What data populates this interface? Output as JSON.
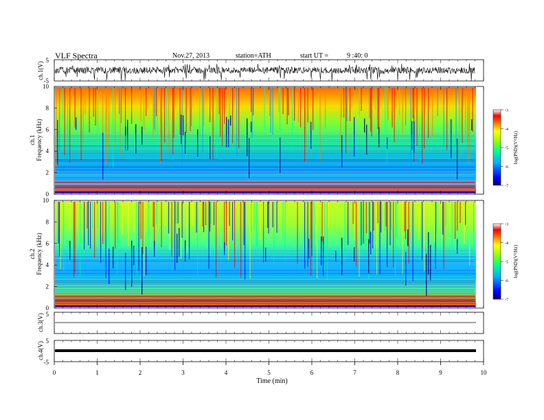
{
  "header": {
    "title": "VLF Spectra",
    "date": "Nov.27, 2013",
    "station": "station=ATH",
    "start_label": "start UT =",
    "start_time": "9 :40: 0"
  },
  "chart_data": [
    {
      "type": "line",
      "panel": "ch1-waveform",
      "ylabel": "ch.1(V)",
      "ylim": [
        -5,
        5
      ],
      "yticks": [
        "5",
        "-5"
      ],
      "x_range_min": [
        0,
        9.8
      ],
      "description_values": "noisy broadband signal around 0 V, amplitude about ±1–2 V with spikes to about -4 V"
    },
    {
      "type": "heatmap",
      "panel": "ch1-spectrogram",
      "ylabel": "ch.1 Frequency (kHz)",
      "ylim": [
        0,
        10
      ],
      "yticks": [
        "0",
        "2",
        "4",
        "6",
        "8",
        "10"
      ],
      "x_range_min": [
        0,
        9.8
      ],
      "colorbar": {
        "label": "log(PSD)(V²/Hz)",
        "range": [
          -7,
          -3
        ],
        "ticks": [
          "-3",
          "-4",
          "-5",
          "-6",
          "-7"
        ]
      }
    },
    {
      "type": "heatmap",
      "panel": "ch2-spectrogram",
      "ylabel": "ch.2 Frequency (kHz)",
      "ylim": [
        0,
        10
      ],
      "yticks": [
        "0",
        "2",
        "4",
        "6",
        "8",
        "10"
      ],
      "x_range_min": [
        0,
        9.8
      ],
      "colorbar": {
        "label": "log(PSD)(V²/Hz)",
        "range": [
          -7,
          -3
        ],
        "ticks": [
          "-3",
          "-4",
          "-5",
          "-6",
          "-7"
        ]
      }
    },
    {
      "type": "line",
      "panel": "ch3-waveform",
      "ylabel": "ch.3(V)",
      "ylim": [
        -5,
        5
      ],
      "yticks": [
        "5"
      ],
      "x": [
        0,
        9.8
      ],
      "y": [
        0,
        0
      ]
    },
    {
      "type": "line",
      "panel": "ch4-waveform",
      "ylabel": "ch.4(V)",
      "ylim": [
        -5,
        5
      ],
      "yticks": [
        "5",
        "-5"
      ],
      "x": [
        0,
        9.8
      ],
      "y": [
        0,
        0
      ]
    }
  ],
  "xaxis": {
    "label": "Time (min)",
    "ticks": [
      "0",
      "1",
      "2",
      "3",
      "4",
      "5",
      "6",
      "7",
      "8",
      "9",
      "10"
    ],
    "range": [
      0,
      10
    ]
  },
  "colors": {
    "spectrum_scale": [
      "#000060",
      "#0000ff",
      "#00a0ff",
      "#00ffa0",
      "#a0ff00",
      "#ffff00",
      "#ff8000",
      "#ff0000",
      "#ffffff"
    ]
  }
}
